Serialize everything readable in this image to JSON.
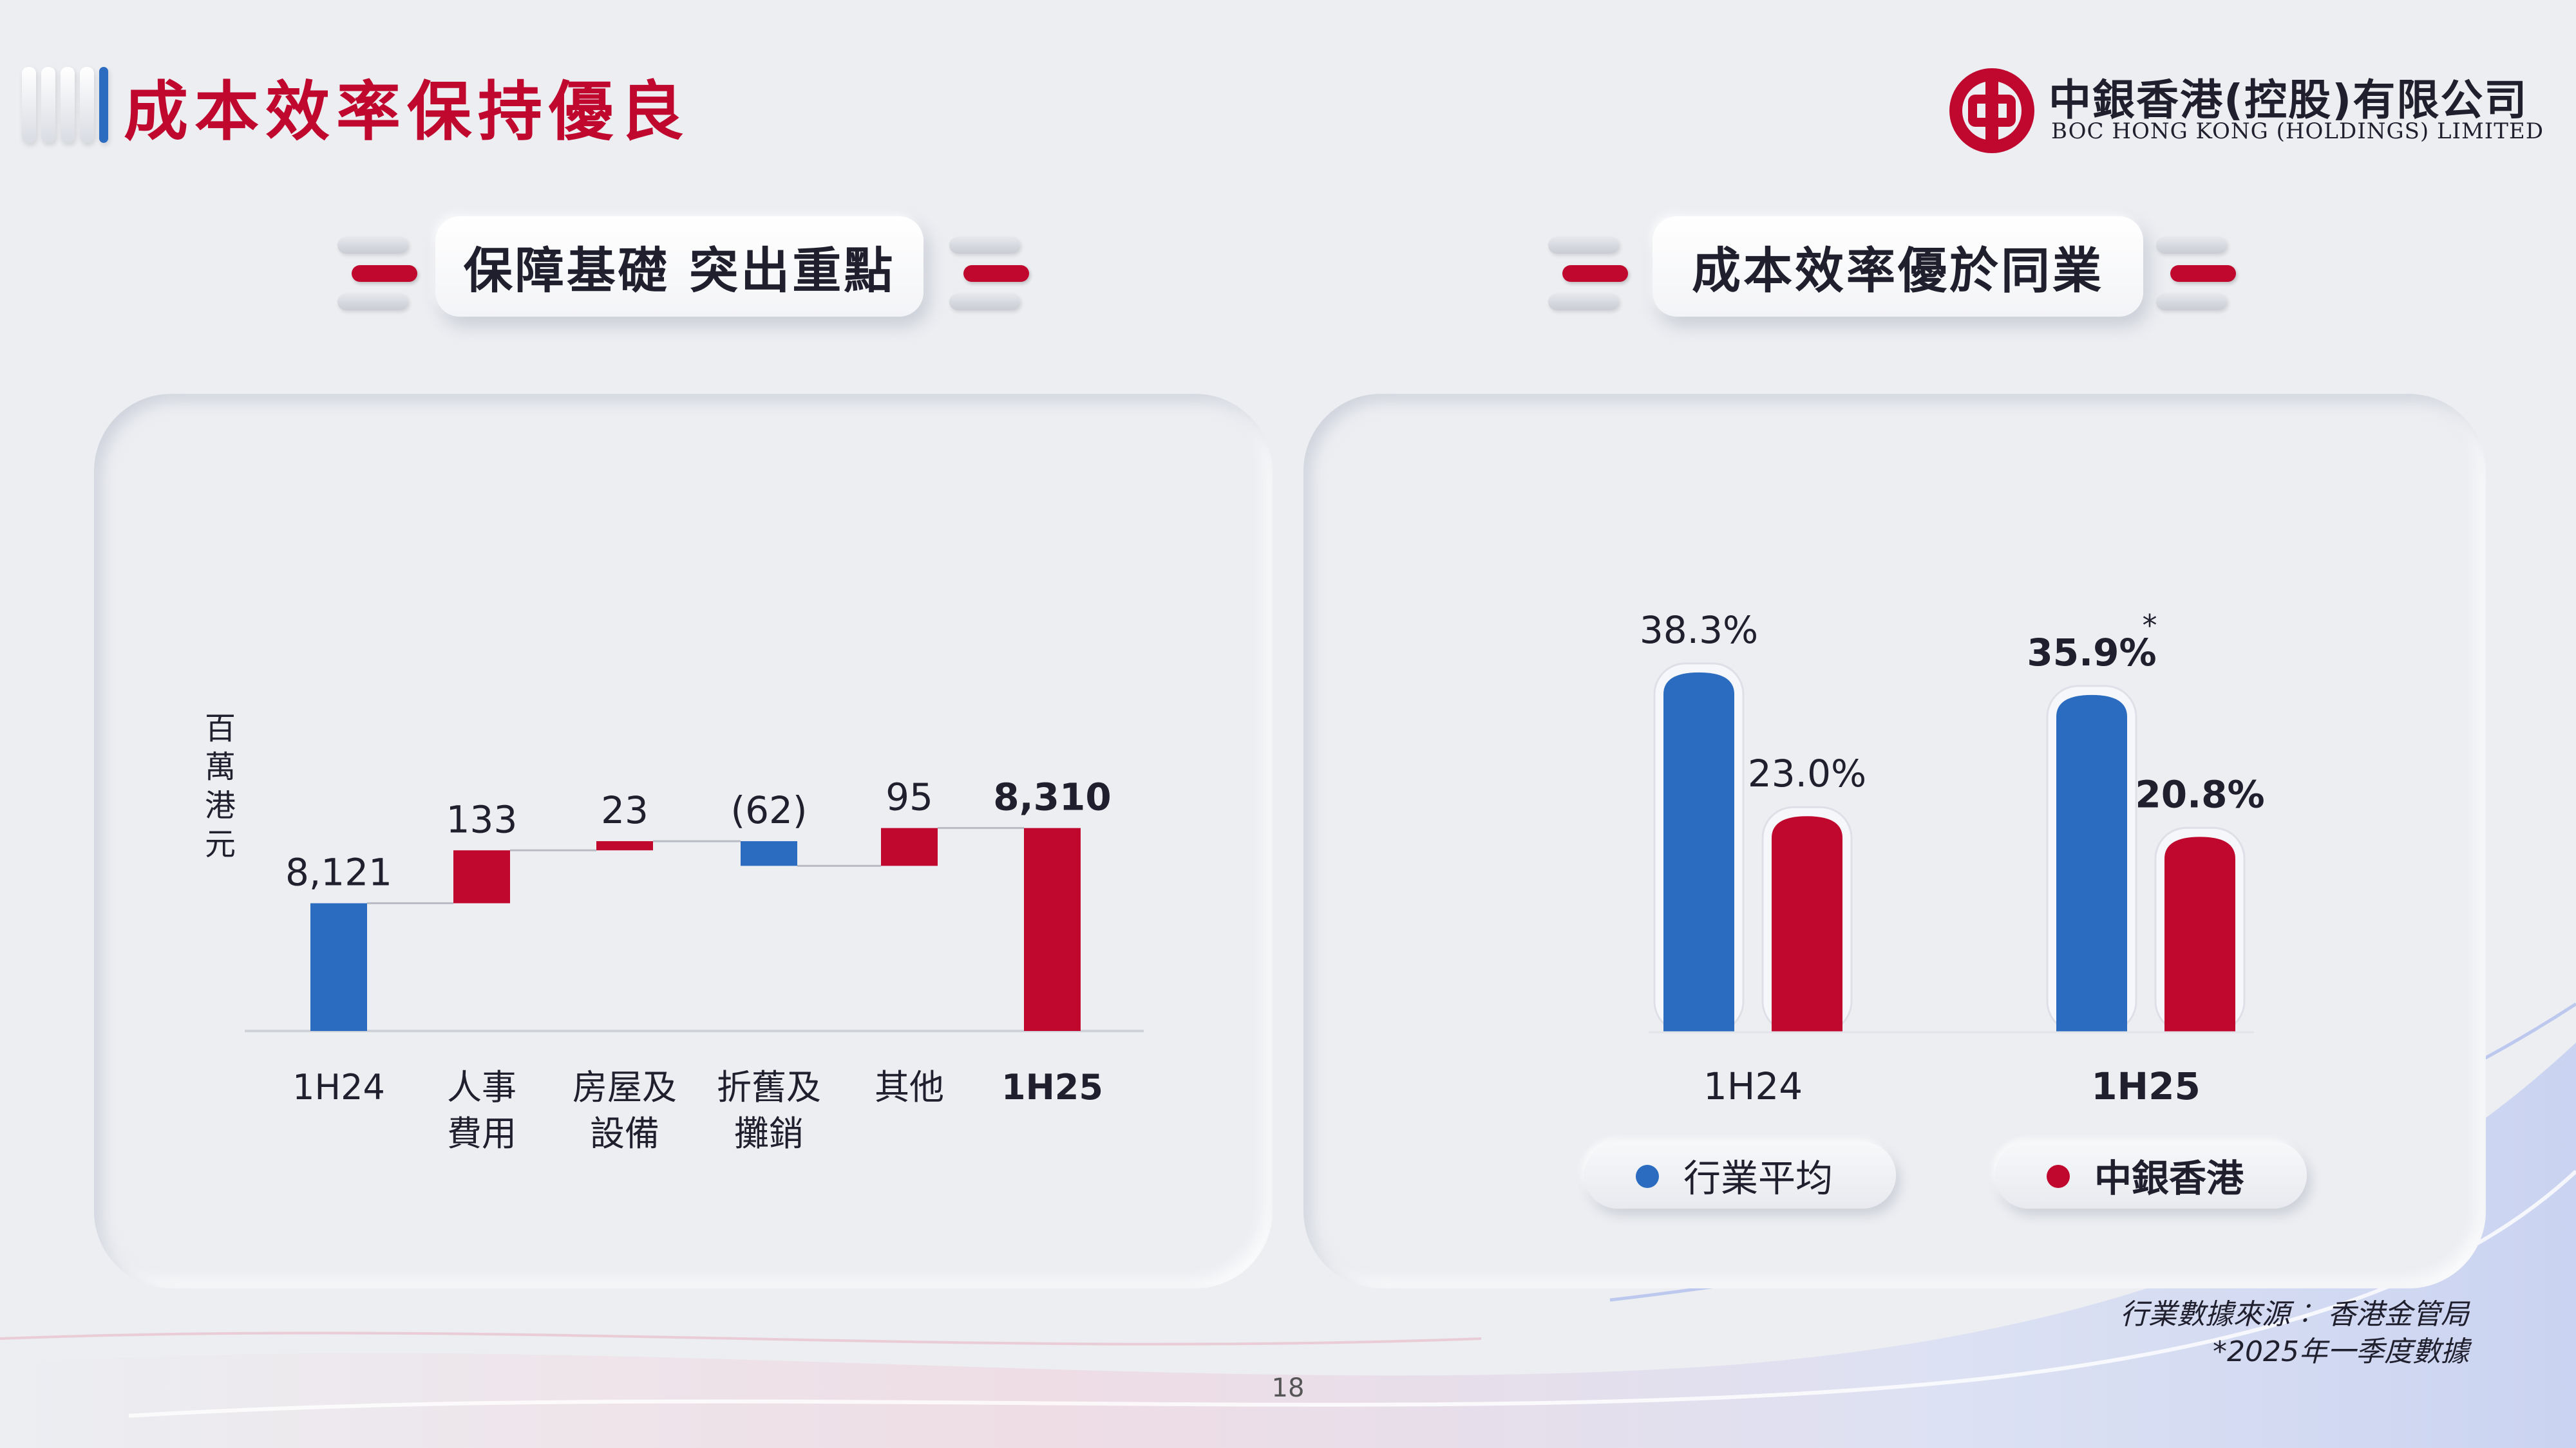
{
  "header": {
    "title": "成本效率保持優良",
    "company_name_zh": "中銀香港(控股)有限公司",
    "company_name_en": "BOC HONG KONG (HOLDINGS) LIMITED"
  },
  "sections": {
    "left_title": "保障基礎 突出重點",
    "right_title": "成本效率優於同業"
  },
  "colors": {
    "brand_red": "#c0082f",
    "brand_blue": "#2b6cc0",
    "background": "#eceef2"
  },
  "chart_data": [
    {
      "type": "bar",
      "subtype": "waterfall",
      "ylabel": "百萬港元",
      "categories": [
        "1H24",
        "人事費用",
        "房屋及設備",
        "折舊及攤銷",
        "其他",
        "1H25"
      ],
      "category_lines": [
        [
          "1H24"
        ],
        [
          "人事",
          "費用"
        ],
        [
          "房屋及",
          "設備"
        ],
        [
          "折舊及",
          "攤銷"
        ],
        [
          "其他"
        ],
        [
          "1H25"
        ]
      ],
      "values": [
        8121,
        133,
        23,
        -62,
        95,
        8310
      ],
      "bar_kinds": [
        "total",
        "increase",
        "increase",
        "decrease",
        "increase",
        "total"
      ],
      "data_labels": [
        "8,121",
        "133",
        "23",
        "(62)",
        "95",
        "8,310"
      ],
      "bold_categories": [
        "1H25"
      ],
      "connector_lines": true
    },
    {
      "type": "bar",
      "categories": [
        "1H24",
        "1H25"
      ],
      "series": [
        {
          "name": "行業平均",
          "values": [
            38.3,
            35.9
          ],
          "data_labels": [
            "38.3%",
            "35.9%"
          ]
        },
        {
          "name": "中銀香港",
          "values": [
            23.0,
            20.8
          ],
          "data_labels": [
            "23.0%",
            "20.8%"
          ]
        }
      ],
      "annotations": [
        {
          "category": "1H25",
          "series": "行業平均",
          "marker": "*"
        }
      ],
      "bold_categories": [
        "1H25"
      ],
      "ylim": [
        0,
        40
      ],
      "legend": "bottom"
    }
  ],
  "footer": {
    "source_line1": "行業數據來源︰ 香港金管局",
    "source_line2": "*2025年一季度數據",
    "page_number": "18"
  }
}
